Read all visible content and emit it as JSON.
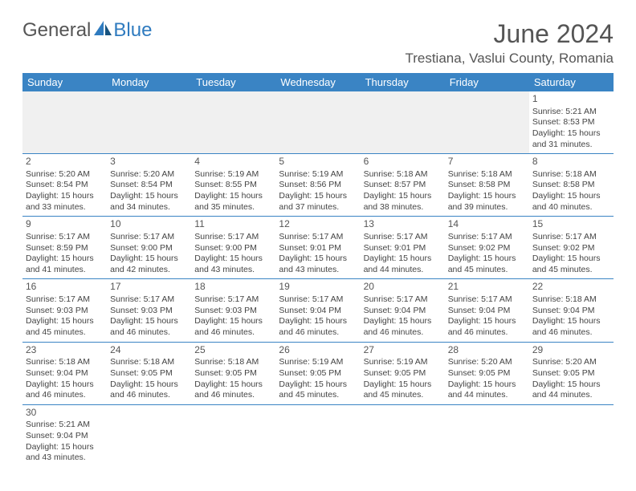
{
  "logo": {
    "text1": "General",
    "text2": "Blue"
  },
  "title": "June 2024",
  "location": "Trestiana, Vaslui County, Romania",
  "colors": {
    "header_bg": "#3a84c4",
    "header_text": "#ffffff",
    "accent": "#2f7bbf",
    "text": "#444444",
    "muted": "#555555",
    "blank_bg": "#f0f0f0",
    "border": "#3a84c4"
  },
  "weekdays": [
    "Sunday",
    "Monday",
    "Tuesday",
    "Wednesday",
    "Thursday",
    "Friday",
    "Saturday"
  ],
  "weeks": [
    [
      null,
      null,
      null,
      null,
      null,
      null,
      {
        "n": "1",
        "sr": "5:21 AM",
        "ss": "8:53 PM",
        "dl": "15 hours and 31 minutes."
      }
    ],
    [
      {
        "n": "2",
        "sr": "5:20 AM",
        "ss": "8:54 PM",
        "dl": "15 hours and 33 minutes."
      },
      {
        "n": "3",
        "sr": "5:20 AM",
        "ss": "8:54 PM",
        "dl": "15 hours and 34 minutes."
      },
      {
        "n": "4",
        "sr": "5:19 AM",
        "ss": "8:55 PM",
        "dl": "15 hours and 35 minutes."
      },
      {
        "n": "5",
        "sr": "5:19 AM",
        "ss": "8:56 PM",
        "dl": "15 hours and 37 minutes."
      },
      {
        "n": "6",
        "sr": "5:18 AM",
        "ss": "8:57 PM",
        "dl": "15 hours and 38 minutes."
      },
      {
        "n": "7",
        "sr": "5:18 AM",
        "ss": "8:58 PM",
        "dl": "15 hours and 39 minutes."
      },
      {
        "n": "8",
        "sr": "5:18 AM",
        "ss": "8:58 PM",
        "dl": "15 hours and 40 minutes."
      }
    ],
    [
      {
        "n": "9",
        "sr": "5:17 AM",
        "ss": "8:59 PM",
        "dl": "15 hours and 41 minutes."
      },
      {
        "n": "10",
        "sr": "5:17 AM",
        "ss": "9:00 PM",
        "dl": "15 hours and 42 minutes."
      },
      {
        "n": "11",
        "sr": "5:17 AM",
        "ss": "9:00 PM",
        "dl": "15 hours and 43 minutes."
      },
      {
        "n": "12",
        "sr": "5:17 AM",
        "ss": "9:01 PM",
        "dl": "15 hours and 43 minutes."
      },
      {
        "n": "13",
        "sr": "5:17 AM",
        "ss": "9:01 PM",
        "dl": "15 hours and 44 minutes."
      },
      {
        "n": "14",
        "sr": "5:17 AM",
        "ss": "9:02 PM",
        "dl": "15 hours and 45 minutes."
      },
      {
        "n": "15",
        "sr": "5:17 AM",
        "ss": "9:02 PM",
        "dl": "15 hours and 45 minutes."
      }
    ],
    [
      {
        "n": "16",
        "sr": "5:17 AM",
        "ss": "9:03 PM",
        "dl": "15 hours and 45 minutes."
      },
      {
        "n": "17",
        "sr": "5:17 AM",
        "ss": "9:03 PM",
        "dl": "15 hours and 46 minutes."
      },
      {
        "n": "18",
        "sr": "5:17 AM",
        "ss": "9:03 PM",
        "dl": "15 hours and 46 minutes."
      },
      {
        "n": "19",
        "sr": "5:17 AM",
        "ss": "9:04 PM",
        "dl": "15 hours and 46 minutes."
      },
      {
        "n": "20",
        "sr": "5:17 AM",
        "ss": "9:04 PM",
        "dl": "15 hours and 46 minutes."
      },
      {
        "n": "21",
        "sr": "5:17 AM",
        "ss": "9:04 PM",
        "dl": "15 hours and 46 minutes."
      },
      {
        "n": "22",
        "sr": "5:18 AM",
        "ss": "9:04 PM",
        "dl": "15 hours and 46 minutes."
      }
    ],
    [
      {
        "n": "23",
        "sr": "5:18 AM",
        "ss": "9:04 PM",
        "dl": "15 hours and 46 minutes."
      },
      {
        "n": "24",
        "sr": "5:18 AM",
        "ss": "9:05 PM",
        "dl": "15 hours and 46 minutes."
      },
      {
        "n": "25",
        "sr": "5:18 AM",
        "ss": "9:05 PM",
        "dl": "15 hours and 46 minutes."
      },
      {
        "n": "26",
        "sr": "5:19 AM",
        "ss": "9:05 PM",
        "dl": "15 hours and 45 minutes."
      },
      {
        "n": "27",
        "sr": "5:19 AM",
        "ss": "9:05 PM",
        "dl": "15 hours and 45 minutes."
      },
      {
        "n": "28",
        "sr": "5:20 AM",
        "ss": "9:05 PM",
        "dl": "15 hours and 44 minutes."
      },
      {
        "n": "29",
        "sr": "5:20 AM",
        "ss": "9:05 PM",
        "dl": "15 hours and 44 minutes."
      }
    ],
    [
      {
        "n": "30",
        "sr": "5:21 AM",
        "ss": "9:04 PM",
        "dl": "15 hours and 43 minutes."
      },
      null,
      null,
      null,
      null,
      null,
      null
    ]
  ],
  "labels": {
    "sunrise": "Sunrise:",
    "sunset": "Sunset:",
    "daylight": "Daylight:"
  }
}
